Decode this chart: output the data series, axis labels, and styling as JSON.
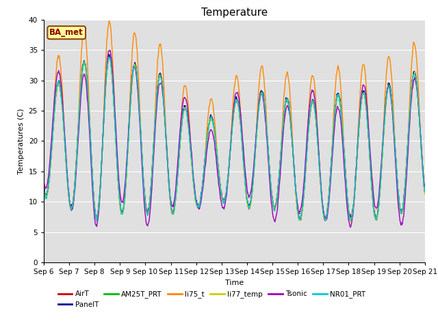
{
  "title": "Temperature",
  "xlabel": "Time",
  "ylabel": "Temperatures (C)",
  "ylim": [
    0,
    40
  ],
  "yticks": [
    0,
    5,
    10,
    15,
    20,
    25,
    30,
    35,
    40
  ],
  "date_labels": [
    "Sep 6",
    "Sep 7",
    "Sep 8",
    "Sep 9",
    "Sep 10",
    "Sep 11",
    "Sep 12",
    "Sep 13",
    "Sep 14",
    "Sep 15",
    "Sep 16",
    "Sep 17",
    "Sep 18",
    "Sep 19",
    "Sep 20",
    "Sep 21"
  ],
  "annotation_text": "BA_met",
  "annotation_color": "#8B0000",
  "annotation_bg": "#FFFF99",
  "annotation_border": "#8B4513",
  "series_names": [
    "AirT",
    "PanelT",
    "AM25T_PRT",
    "li75_t",
    "li77_temp",
    "Tsonic",
    "NR01_PRT"
  ],
  "series_colors": [
    "#CC0000",
    "#000099",
    "#00BB00",
    "#FF8800",
    "#CCCC00",
    "#9900BB",
    "#00CCCC"
  ],
  "bg_color": "#E0E0E0",
  "grid_color": "#FFFFFF",
  "title_fontsize": 11,
  "label_fontsize": 8,
  "tick_fontsize": 7.5
}
